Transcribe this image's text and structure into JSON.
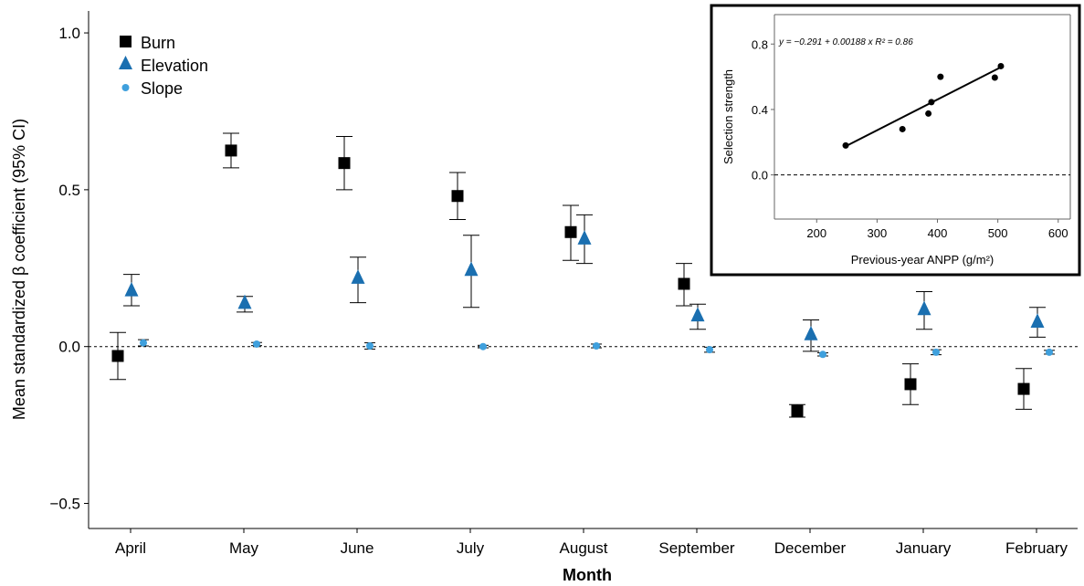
{
  "chart_data": [
    {
      "type": "scatter",
      "subtype": "point-with-error-bars",
      "xlabel": "Month",
      "ylabel": "Mean standardized β coefficient (95% CI)",
      "categories": [
        "April",
        "May",
        "June",
        "July",
        "August",
        "September",
        "December",
        "January",
        "February"
      ],
      "ylim": [
        -0.58,
        1.07
      ],
      "yticks": [
        -0.5,
        0.0,
        0.5,
        1.0
      ],
      "ytick_labels": [
        "−0.5",
        "0.0",
        "0.5",
        "1.0"
      ],
      "reference_line": 0,
      "legend_position": "top-left",
      "series": [
        {
          "name": "Burn",
          "marker": "square",
          "color": "#000000",
          "values": [
            -0.03,
            0.625,
            0.585,
            0.48,
            0.365,
            0.2,
            -0.205,
            -0.12,
            -0.135
          ],
          "lower": [
            -0.105,
            0.57,
            0.5,
            0.405,
            0.275,
            0.13,
            -0.225,
            -0.185,
            -0.2
          ],
          "upper": [
            0.045,
            0.68,
            0.67,
            0.555,
            0.45,
            0.265,
            -0.185,
            -0.055,
            -0.07
          ]
        },
        {
          "name": "Elevation",
          "marker": "triangle",
          "color": "#1a6fb0",
          "values": [
            0.18,
            0.14,
            0.22,
            0.245,
            0.345,
            0.1,
            0.04,
            0.12,
            0.08
          ],
          "lower": [
            0.13,
            0.11,
            0.14,
            0.125,
            0.265,
            0.055,
            -0.015,
            0.055,
            0.03
          ],
          "upper": [
            0.23,
            0.16,
            0.285,
            0.355,
            0.42,
            0.135,
            0.085,
            0.175,
            0.125
          ]
        },
        {
          "name": "Slope",
          "marker": "circle",
          "color": "#3fa0dd",
          "values": [
            0.012,
            0.008,
            0.002,
            0.0,
            0.002,
            -0.01,
            -0.025,
            -0.018,
            -0.018
          ],
          "lower": [
            0.002,
            0.003,
            -0.008,
            -0.004,
            -0.004,
            -0.018,
            -0.03,
            -0.026,
            -0.024
          ],
          "upper": [
            0.022,
            0.013,
            0.012,
            0.004,
            0.008,
            -0.002,
            -0.02,
            -0.01,
            -0.012
          ]
        }
      ]
    },
    {
      "type": "scatter",
      "subtype": "scatter-with-regression-inset",
      "xlabel": "Previous-year ANPP (g/m²)",
      "ylabel": "Selection strength",
      "xlim": [
        130,
        620
      ],
      "ylim": [
        -0.27,
        0.98
      ],
      "xticks": [
        200,
        300,
        400,
        500,
        600
      ],
      "yticks": [
        0.0,
        0.4,
        0.8
      ],
      "ytick_labels": [
        "0.0",
        "0.4",
        "0.8"
      ],
      "points": [
        {
          "x": 248,
          "y": 0.18
        },
        {
          "x": 342,
          "y": 0.28
        },
        {
          "x": 385,
          "y": 0.375
        },
        {
          "x": 390,
          "y": 0.445
        },
        {
          "x": 405,
          "y": 0.6
        },
        {
          "x": 495,
          "y": 0.595
        },
        {
          "x": 505,
          "y": 0.665
        }
      ],
      "fit": {
        "intercept": -0.291,
        "slope": 0.00188,
        "x_range": [
          248,
          505
        ]
      },
      "equation_text": "y = −0.291 + 0.00188 x   R² = 0.86",
      "reference_line": 0
    }
  ]
}
